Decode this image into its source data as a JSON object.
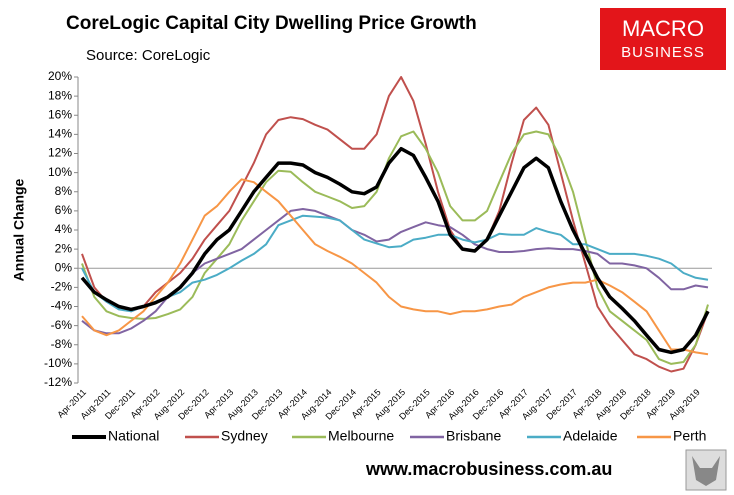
{
  "chart_data": {
    "type": "line",
    "title": "CoreLogic Capital City Dwelling Price Growth",
    "subtitle": "Source: CoreLogic",
    "y_label": "Annual Change",
    "logo": [
      "MACRO",
      "BUSINESS"
    ],
    "footer": "www.macrobusiness.com.au",
    "categories": [
      "Apr-2011",
      null,
      "Aug-2011",
      null,
      "Dec-2011",
      null,
      "Apr-2012",
      null,
      "Aug-2012",
      null,
      "Dec-2012",
      null,
      "Apr-2013",
      null,
      "Aug-2013",
      null,
      "Dec-2013",
      null,
      "Apr-2014",
      null,
      "Aug-2014",
      null,
      "Dec-2014",
      null,
      "Apr-2015",
      null,
      "Aug-2015",
      null,
      "Dec-2015",
      null,
      "Apr-2016",
      null,
      "Aug-2016",
      null,
      "Dec-2016",
      null,
      "Apr-2017",
      null,
      "Aug-2017",
      null,
      "Dec-2017",
      null,
      "Apr-2018",
      null,
      "Aug-2018",
      null,
      "Dec-2018",
      null,
      "Apr-2019",
      null,
      "Aug-2019",
      null
    ],
    "series": [
      {
        "name": "National",
        "color": "#000000",
        "values": [
          -1,
          -2.5,
          -3.3,
          -4,
          -4.3,
          -4,
          -3.6,
          -3,
          -2,
          -0.5,
          1.5,
          3,
          4,
          6,
          8,
          9.5,
          11,
          11,
          10.8,
          10,
          9.5,
          8.8,
          8,
          7.8,
          8.5,
          11,
          12.5,
          11.8,
          9.5,
          7,
          3.5,
          2,
          1.8,
          3,
          5.5,
          8,
          10.5,
          11.5,
          10.5,
          7,
          4,
          1.5,
          -1,
          -3,
          -4.2,
          -5.5,
          -7,
          -8.5,
          -8.8,
          -8.5,
          -7,
          -4.5
        ]
      },
      {
        "name": "Sydney",
        "color": "#c0504d",
        "values": [
          1.5,
          -2,
          -3.5,
          -4,
          -4.5,
          -4,
          -2.5,
          -1.5,
          -0.5,
          1,
          3,
          4.5,
          6,
          8.5,
          11,
          14,
          15.5,
          15.8,
          15.6,
          15,
          14.5,
          13.5,
          12.5,
          12.5,
          14,
          18,
          20,
          17.5,
          13,
          8,
          4,
          2,
          1.8,
          3,
          6,
          11,
          15.5,
          16.8,
          15,
          10,
          5,
          0.5,
          -4,
          -6,
          -7.5,
          -9,
          -9.5,
          -10.3,
          -10.8,
          -10.5,
          -8,
          -4.5
        ]
      },
      {
        "name": "Melbourne",
        "color": "#9bbb59",
        "values": [
          0.5,
          -3,
          -4.5,
          -5,
          -5.2,
          -5.3,
          -5.2,
          -4.8,
          -4.3,
          -3,
          -0.5,
          1,
          2.5,
          5,
          7,
          9,
          10.2,
          10.1,
          9,
          8,
          7.5,
          7,
          6.3,
          6.5,
          8,
          11.5,
          13.8,
          14.3,
          12.5,
          10,
          6.5,
          5,
          5,
          6,
          9,
          12,
          14,
          14.3,
          14,
          11.5,
          8,
          3,
          -2,
          -4.5,
          -5.5,
          -6.5,
          -7.5,
          -9.5,
          -10,
          -9.8,
          -8,
          -3.8
        ]
      },
      {
        "name": "Brisbane",
        "color": "#8064a2",
        "values": [
          -5.5,
          -6.5,
          -6.8,
          -6.8,
          -6.3,
          -5.5,
          -4.5,
          -3,
          -2,
          -0.5,
          0.5,
          1,
          1.5,
          2,
          3,
          4,
          5,
          6,
          6.2,
          6,
          5.5,
          5,
          4,
          3.5,
          2.8,
          3,
          3.8,
          4.3,
          4.8,
          4.5,
          4.3,
          3.5,
          2.5,
          2,
          1.7,
          1.7,
          1.8,
          2,
          2.1,
          2,
          2,
          1.8,
          1.5,
          0.5,
          0.5,
          0.3,
          0,
          -1,
          -2.2,
          -2.2,
          -1.8,
          -2
        ]
      },
      {
        "name": "Adelaide",
        "color": "#4bacc6",
        "values": [
          0,
          -2.5,
          -3.5,
          -4.3,
          -4.5,
          -4,
          -3.5,
          -3,
          -2.5,
          -1.5,
          -1.2,
          -0.7,
          0,
          0.8,
          1.5,
          2.5,
          4.5,
          5,
          5.5,
          5.4,
          5.3,
          5,
          4,
          3,
          2.6,
          2.2,
          2.3,
          3,
          3.2,
          3.5,
          3.5,
          3,
          2.7,
          3,
          3.6,
          3.5,
          3.5,
          4.2,
          3.8,
          3.5,
          2.5,
          2.5,
          2,
          1.5,
          1.5,
          1.5,
          1.3,
          1,
          0.5,
          -0.5,
          -1,
          -1.2
        ]
      },
      {
        "name": "Perth",
        "color": "#f79646",
        "values": [
          -5,
          -6.5,
          -7,
          -6.5,
          -5.5,
          -4.5,
          -3,
          -1.5,
          0.5,
          3,
          5.5,
          6.5,
          8,
          9.3,
          9,
          8,
          7,
          5.5,
          4,
          2.5,
          1.8,
          1.2,
          0.5,
          -0.5,
          -1.5,
          -3,
          -4,
          -4.3,
          -4.5,
          -4.5,
          -4.8,
          -4.5,
          -4.5,
          -4.3,
          -4,
          -3.8,
          -3,
          -2.5,
          -2,
          -1.7,
          -1.5,
          -1.5,
          -1.2,
          -1.8,
          -2.5,
          -3.5,
          -4.5,
          -6.5,
          -8.5,
          -8.5,
          -8.8,
          -9
        ]
      }
    ],
    "ylim": [
      -12,
      20
    ],
    "yticks": [
      {
        "value": -12,
        "label": "-12%"
      },
      {
        "value": -10,
        "label": "-10%"
      },
      {
        "value": -8,
        "label": "-8%"
      },
      {
        "value": -6,
        "label": "-6%"
      },
      {
        "value": -4,
        "label": "-4%"
      },
      {
        "value": -2,
        "label": "-2%"
      },
      {
        "value": 0,
        "label": "0%"
      },
      {
        "value": 2,
        "label": "2%"
      },
      {
        "value": 4,
        "label": "4%"
      },
      {
        "value": 6,
        "label": "6%"
      },
      {
        "value": 8,
        "label": "8%"
      },
      {
        "value": 10,
        "label": "10%"
      },
      {
        "value": 12,
        "label": "12%"
      },
      {
        "value": 14,
        "label": "14%"
      },
      {
        "value": 16,
        "label": "16%"
      },
      {
        "value": 18,
        "label": "18%"
      },
      {
        "value": 20,
        "label": "20%"
      }
    ],
    "legend": "bottom"
  }
}
